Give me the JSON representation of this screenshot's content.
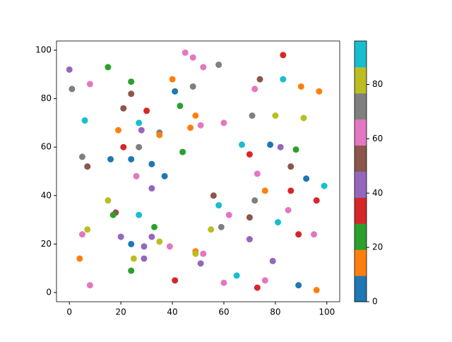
{
  "chart_data": {
    "type": "scatter",
    "x": [
      0,
      1,
      6,
      5,
      7,
      8,
      15,
      16,
      19,
      21,
      21,
      24,
      24,
      24,
      27,
      28,
      27,
      26,
      30,
      32,
      35,
      35,
      37,
      32,
      40,
      41,
      43,
      45,
      48,
      52,
      48,
      49,
      47,
      51,
      44,
      58,
      60,
      56,
      58,
      62,
      67,
      70,
      72,
      74,
      71,
      78,
      80,
      83,
      83,
      82,
      88,
      90,
      91,
      97,
      73,
      86,
      92,
      99,
      76,
      86,
      72,
      96,
      85,
      70,
      81,
      59,
      55,
      89,
      95,
      70,
      79,
      76,
      73,
      65,
      60,
      89,
      96,
      49,
      49,
      52,
      51,
      41,
      39,
      35,
      32,
      33,
      29,
      29,
      27,
      25,
      24,
      24,
      20,
      18,
      17,
      15,
      7,
      5,
      4,
      8
    ],
    "y": [
      92,
      84,
      71,
      56,
      52,
      86,
      93,
      55,
      67,
      76,
      60,
      87,
      82,
      55,
      70,
      67,
      60,
      48,
      75,
      53,
      66,
      65,
      48,
      43,
      88,
      83,
      77,
      99,
      97,
      93,
      85,
      73,
      68,
      69,
      58,
      94,
      70,
      40,
      36,
      32,
      61,
      57,
      84,
      88,
      73,
      61,
      73,
      98,
      88,
      60,
      59,
      85,
      72,
      83,
      49,
      52,
      47,
      44,
      42,
      42,
      38,
      38,
      34,
      31,
      29,
      27,
      26,
      24,
      24,
      22,
      13,
      5,
      2,
      7,
      4,
      3,
      1,
      17,
      16,
      16,
      12,
      5,
      19,
      21,
      23,
      27,
      19,
      14,
      32,
      14,
      20,
      9,
      23,
      33,
      32,
      38,
      26,
      24,
      14,
      3
    ],
    "c": [
      43,
      72,
      91,
      72,
      53,
      62,
      24,
      5,
      14,
      53,
      34,
      24,
      53,
      5,
      91,
      43,
      72,
      62,
      34,
      5,
      72,
      14,
      5,
      43,
      14,
      5,
      24,
      62,
      62,
      62,
      72,
      14,
      14,
      62,
      24,
      72,
      62,
      53,
      91,
      62,
      91,
      34,
      62,
      53,
      72,
      5,
      82,
      34,
      91,
      43,
      24,
      14,
      82,
      14,
      62,
      53,
      5,
      91,
      14,
      34,
      72,
      34,
      62,
      53,
      91,
      72,
      82,
      34,
      62,
      43,
      43,
      62,
      34,
      91,
      62,
      5,
      14,
      14,
      82,
      62,
      43,
      34,
      62,
      82,
      43,
      24,
      43,
      43,
      91,
      82,
      5,
      24,
      43,
      53,
      24,
      82,
      82,
      62,
      14,
      62
    ],
    "cmap_colors": [
      "#1f77b4",
      "#ff7f0e",
      "#2ca02c",
      "#d62728",
      "#9467bd",
      "#8c564b",
      "#e377c2",
      "#7f7f7f",
      "#bcbd22",
      "#17becf"
    ],
    "xlim": [
      -5,
      105
    ],
    "ylim": [
      -3.8,
      103.8
    ],
    "clim": [
      0,
      96
    ],
    "xticks": [
      0,
      20,
      40,
      60,
      80,
      100
    ],
    "yticks": [
      0,
      20,
      40,
      60,
      80,
      100
    ],
    "cticks": [
      0,
      20,
      40,
      60,
      80
    ]
  }
}
